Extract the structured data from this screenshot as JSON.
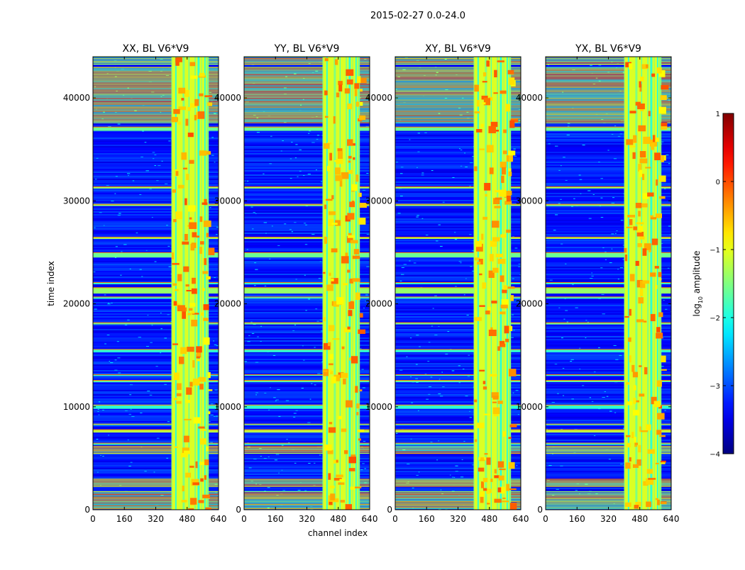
{
  "figure_title": "2015-02-27 0.0-24.0",
  "chart_data": {
    "type": "heatmap",
    "suptitle": "2015-02-27 0.0-24.0",
    "xlabel": "channel index",
    "ylabel": "time index",
    "xlim": [
      0,
      640
    ],
    "ylim": [
      0,
      44000
    ],
    "xticks": [
      0,
      160,
      320,
      480,
      640
    ],
    "yticks": [
      0,
      10000,
      20000,
      30000,
      40000
    ],
    "panels": [
      {
        "title": "XX, BL V6*V9"
      },
      {
        "title": "YY, BL V6*V9"
      },
      {
        "title": "XY, BL V6*V9"
      },
      {
        "title": "YX, BL V6*V9"
      }
    ],
    "colorbar": {
      "label": "log10 amplitude",
      "label_main": "log",
      "label_sub": "10",
      "label_rest": " amplitude",
      "range": [
        -4,
        1
      ],
      "ticks": [
        1,
        0,
        -1,
        -2,
        -3,
        -4
      ],
      "tick_labels": [
        "1",
        "0",
        "−1",
        "−2",
        "−3",
        "−4"
      ],
      "colormap": "jet"
    },
    "rfi_channel_band": [
      400,
      590
    ],
    "rfi_time_bands": [
      [
        0,
        1800,
        1.2
      ],
      [
        2300,
        3000,
        2.1
      ],
      [
        5400,
        6200,
        1.5
      ],
      [
        6300,
        6500,
        1.9
      ],
      [
        7500,
        7800,
        1.2
      ],
      [
        8200,
        8350,
        1.9
      ],
      [
        9800,
        10200,
        1.9
      ],
      [
        12400,
        12600,
        1.6
      ],
      [
        13000,
        13150,
        1.9
      ],
      [
        15300,
        15600,
        1.9
      ],
      [
        18000,
        18200,
        1.6
      ],
      [
        20500,
        20700,
        1.9
      ],
      [
        21000,
        21600,
        1.4
      ],
      [
        21900,
        22100,
        1.9
      ],
      [
        24500,
        25000,
        1.6
      ],
      [
        26300,
        26500,
        1.3
      ],
      [
        29500,
        29700,
        1.4
      ],
      [
        31200,
        31400,
        1.4
      ],
      [
        36800,
        37200,
        1.6
      ],
      [
        37500,
        43000,
        1.0
      ],
      [
        43200,
        44000,
        2.0
      ]
    ],
    "note": "Waterfall amplitude (log10) vs channel and time index for four polarisation products; strong RFI in channels ~400-590 and in discrete time bands."
  }
}
